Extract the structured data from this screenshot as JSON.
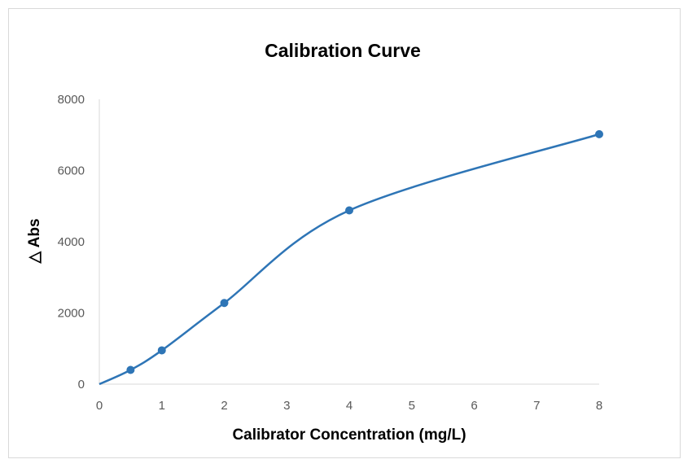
{
  "chart_data": {
    "type": "scatter",
    "title": "Calibration Curve",
    "xlabel": "Calibrator Concentration (mg/L)",
    "ylabel": "△ Abs",
    "xlim": [
      0,
      8
    ],
    "ylim": [
      0,
      8000
    ],
    "x_ticks": [
      "0",
      "1",
      "2",
      "3",
      "4",
      "5",
      "6",
      "7",
      "8"
    ],
    "y_ticks": [
      "0",
      "2000",
      "4000",
      "6000",
      "8000"
    ],
    "grid": false,
    "legend": "none",
    "smoothed_line": true,
    "series": [
      {
        "x": [
          0,
          0.5,
          1,
          2,
          4,
          8
        ],
        "y": [
          0,
          400,
          950,
          2280,
          4880,
          7020
        ],
        "color": "#2e75b6"
      }
    ]
  }
}
